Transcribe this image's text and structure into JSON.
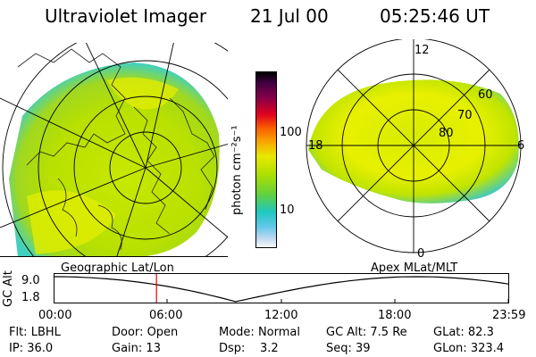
{
  "header": {
    "title": "Ultraviolet Imager",
    "date": "21 Jul 00",
    "time": "05:25:46 UT"
  },
  "colorbar": {
    "label": "photon cm⁻²s⁻¹",
    "ticks": [
      "100",
      "10"
    ]
  },
  "left_map": {
    "caption": "Geographic Lat/Lon"
  },
  "right_map": {
    "caption": "Apex MLat/MLT",
    "mlt_labels": [
      "12",
      "18",
      "6",
      "0"
    ],
    "lat_labels": [
      "60",
      "70",
      "80"
    ]
  },
  "altitude_plot": {
    "ylabel": "GC Alt",
    "yticks": [
      "9.0",
      "1.8"
    ],
    "xticks": [
      "00:00",
      "06:00",
      "12:00",
      "18:00",
      "23:59"
    ],
    "current_time_marker_hours": 5.43
  },
  "info": [
    {
      "label": "Flt:",
      "value": "LBHL"
    },
    {
      "label": "Door:",
      "value": "Open"
    },
    {
      "label": "Mode:",
      "value": "Normal"
    },
    {
      "label": "GC Alt:",
      "value": "7.5 Re"
    },
    {
      "label": "GLat:",
      "value": "82.3"
    },
    {
      "label": "IP:",
      "value": "36.0"
    },
    {
      "label": "Gain:",
      "value": "13"
    },
    {
      "label": "Dsp:",
      "value": "3.2"
    },
    {
      "label": "Seq:",
      "value": "39"
    },
    {
      "label": "GLon:",
      "value": "323.4"
    }
  ]
}
